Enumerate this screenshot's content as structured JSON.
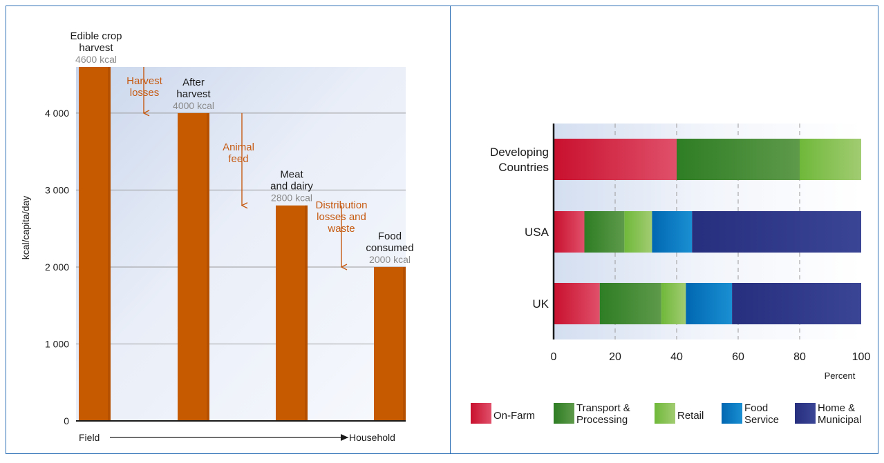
{
  "chart_data": [
    {
      "type": "bar",
      "ylabel": "kcal/capita/day",
      "ylim": [
        0,
        4600
      ],
      "yticks": [
        0,
        1000,
        2000,
        3000,
        4000
      ],
      "ytick_labels": [
        "0",
        "1 000",
        "2 000",
        "3 000",
        "4 000"
      ],
      "grid": true,
      "xaxis": {
        "start_label": "Field",
        "end_label": "Household"
      },
      "bar_color": "#c65a00",
      "bars": [
        {
          "lines": [
            "Edible crop",
            "harvest"
          ],
          "kcal_label": "4600 kcal",
          "value": 4600
        },
        {
          "lines": [
            "After",
            "harvest"
          ],
          "kcal_label": "4000 kcal",
          "value": 4000
        },
        {
          "lines": [
            "Meat",
            "and dairy"
          ],
          "kcal_label": "2800 kcal",
          "value": 2800
        },
        {
          "lines": [
            "Food",
            "consumed"
          ],
          "kcal_label": "2000 kcal",
          "value": 2000
        }
      ],
      "losses": [
        {
          "lines": [
            "Harvest",
            "losses"
          ],
          "from": 4600,
          "to": 4000
        },
        {
          "lines": [
            "Animal",
            "feed"
          ],
          "from": 4000,
          "to": 2800
        },
        {
          "lines": [
            "Distribution",
            "losses and",
            "waste"
          ],
          "from": 2800,
          "to": 2000
        }
      ],
      "loss_color": "#c65a12"
    },
    {
      "type": "bar",
      "orientation": "horizontal",
      "stacked": true,
      "xlabel": "Percent",
      "xlim": [
        0,
        100
      ],
      "xticks": [
        0,
        20,
        40,
        60,
        80,
        100
      ],
      "grid": true,
      "legend_position": "bottom",
      "categories": [
        {
          "lines": [
            "Developing",
            "Countries"
          ]
        },
        {
          "lines": [
            "USA"
          ]
        },
        {
          "lines": [
            "UK"
          ]
        }
      ],
      "series": [
        {
          "name": "On-Farm",
          "legend_lines": [
            "On-Farm"
          ],
          "values": [
            40,
            10,
            15
          ],
          "color_dark": "#c8102e",
          "color_light": "#e0506a"
        },
        {
          "name": "Transport & Processing",
          "legend_lines": [
            "Transport &",
            "Processing"
          ],
          "values": [
            40,
            13,
            20
          ],
          "color_dark": "#2e7d24",
          "color_light": "#5e9a4a"
        },
        {
          "name": "Retail",
          "legend_lines": [
            "Retail"
          ],
          "values": [
            20,
            9,
            8
          ],
          "color_dark": "#6fb83a",
          "color_light": "#a2cc72"
        },
        {
          "name": "Food Service",
          "legend_lines": [
            "Food",
            "Service"
          ],
          "values": [
            0,
            13,
            15
          ],
          "color_dark": "#0067b1",
          "color_light": "#1a8fd2"
        },
        {
          "name": "Home & Municipal",
          "legend_lines": [
            "Home &",
            "Municipal"
          ],
          "values": [
            0,
            55,
            42
          ],
          "color_dark": "#262f7e",
          "color_light": "#3b4596"
        }
      ]
    }
  ]
}
